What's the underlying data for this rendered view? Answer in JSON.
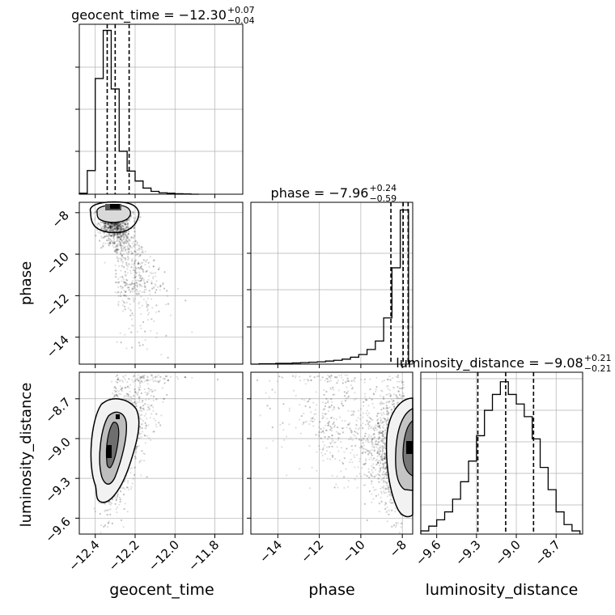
{
  "chart_data": [
    {
      "type": "histogram",
      "param": "geocent_time",
      "title": {
        "prefix": "geocent_time = −12.30",
        "sup": "+0.07",
        "sub": "−0.04"
      },
      "xlim": [
        -12.48,
        -11.66
      ],
      "bin_edges": [
        -12.48,
        -12.44,
        -12.4,
        -12.36,
        -12.32,
        -12.28,
        -12.24,
        -12.2,
        -12.16,
        -12.12,
        -12.08,
        -12.04,
        -12.0,
        -11.96,
        -11.92,
        -11.88
      ],
      "counts": [
        0.2,
        5.0,
        24.5,
        34.7,
        22.3,
        9.1,
        4.9,
        2.8,
        1.3,
        0.6,
        0.3,
        0.2,
        0.1,
        0.05,
        0
      ],
      "ymax": 36,
      "quantiles": [
        -12.34,
        -12.3,
        -12.23
      ]
    },
    {
      "type": "scatter",
      "param_x": "geocent_time",
      "param_y": "phase",
      "ylabel": "phase",
      "xlim": [
        -12.48,
        -11.66
      ],
      "ylim": [
        -15.3,
        -7.5
      ],
      "yticks": [
        "−8",
        "−10",
        "−12",
        "−14"
      ],
      "ytick_values": [
        -8,
        -10,
        -12,
        -14
      ]
    },
    {
      "type": "histogram",
      "param": "phase",
      "title": {
        "prefix": "phase = −7.96",
        "sup": "+0.24",
        "sub": "−0.59"
      },
      "xlim": [
        -15.3,
        -7.5
      ],
      "bin_edges": [
        -15.3,
        -14.9,
        -14.5,
        -14.1,
        -13.7,
        -13.3,
        -12.9,
        -12.5,
        -12.1,
        -11.7,
        -11.3,
        -10.9,
        -10.5,
        -10.1,
        -9.7,
        -9.3,
        -8.9,
        -8.5,
        -8.1,
        -7.7
      ],
      "counts": [
        0,
        0.1,
        0.1,
        0.2,
        0.2,
        0.3,
        0.4,
        0.5,
        0.6,
        0.8,
        1.0,
        1.3,
        1.8,
        2.5,
        3.8,
        6.0,
        12.0,
        25.0,
        40.0
      ],
      "ymax": 42,
      "quantiles": [
        -8.55,
        -7.96,
        -7.72
      ]
    },
    {
      "type": "scatter",
      "param_x": "geocent_time",
      "param_y": "luminosity_distance",
      "xlabel": "geocent_time",
      "ylabel": "luminosity_distance",
      "xlim": [
        -12.48,
        -11.66
      ],
      "ylim": [
        -9.72,
        -8.5
      ],
      "xticks": [
        "−12.4",
        "−12.2",
        "−12.0",
        "−11.8"
      ],
      "xtick_values": [
        -12.4,
        -12.2,
        -12.0,
        -11.8
      ],
      "yticks": [
        "−8.7",
        "−9.0",
        "−9.3",
        "−9.6"
      ],
      "ytick_values": [
        -8.7,
        -9.0,
        -9.3,
        -9.6
      ]
    },
    {
      "type": "scatter",
      "param_x": "phase",
      "param_y": "luminosity_distance",
      "xlabel": "phase",
      "xlim": [
        -15.3,
        -7.5
      ],
      "ylim": [
        -9.72,
        -8.5
      ],
      "xticks": [
        "−14",
        "−12",
        "−10",
        "−8"
      ],
      "xtick_values": [
        -14,
        -12,
        -10,
        -8
      ]
    },
    {
      "type": "histogram",
      "param": "luminosity_distance",
      "title": {
        "prefix": "luminosity_distance = −9.08",
        "sup": "+0.21",
        "sub": "−0.21"
      },
      "xlabel": "luminosity_distance",
      "xlim": [
        -9.72,
        -8.5
      ],
      "bin_edges": [
        -9.72,
        -9.66,
        -9.6,
        -9.54,
        -9.48,
        -9.42,
        -9.36,
        -9.3,
        -9.24,
        -9.18,
        -9.12,
        -9.06,
        -9.0,
        -8.94,
        -8.88,
        -8.82,
        -8.76,
        -8.7,
        -8.64,
        -8.58,
        -8.52
      ],
      "counts": [
        2,
        5,
        9,
        14,
        22,
        33,
        46,
        62,
        78,
        88,
        96,
        88,
        82,
        74,
        60,
        42,
        28,
        14,
        6,
        2
      ],
      "ymax": 102,
      "xticks": [
        "−9.6",
        "−9.3",
        "−9.0",
        "−8.7"
      ],
      "xtick_values": [
        -9.6,
        -9.3,
        -9.0,
        -8.7
      ],
      "quantiles": [
        -9.29,
        -9.08,
        -8.87
      ]
    }
  ]
}
